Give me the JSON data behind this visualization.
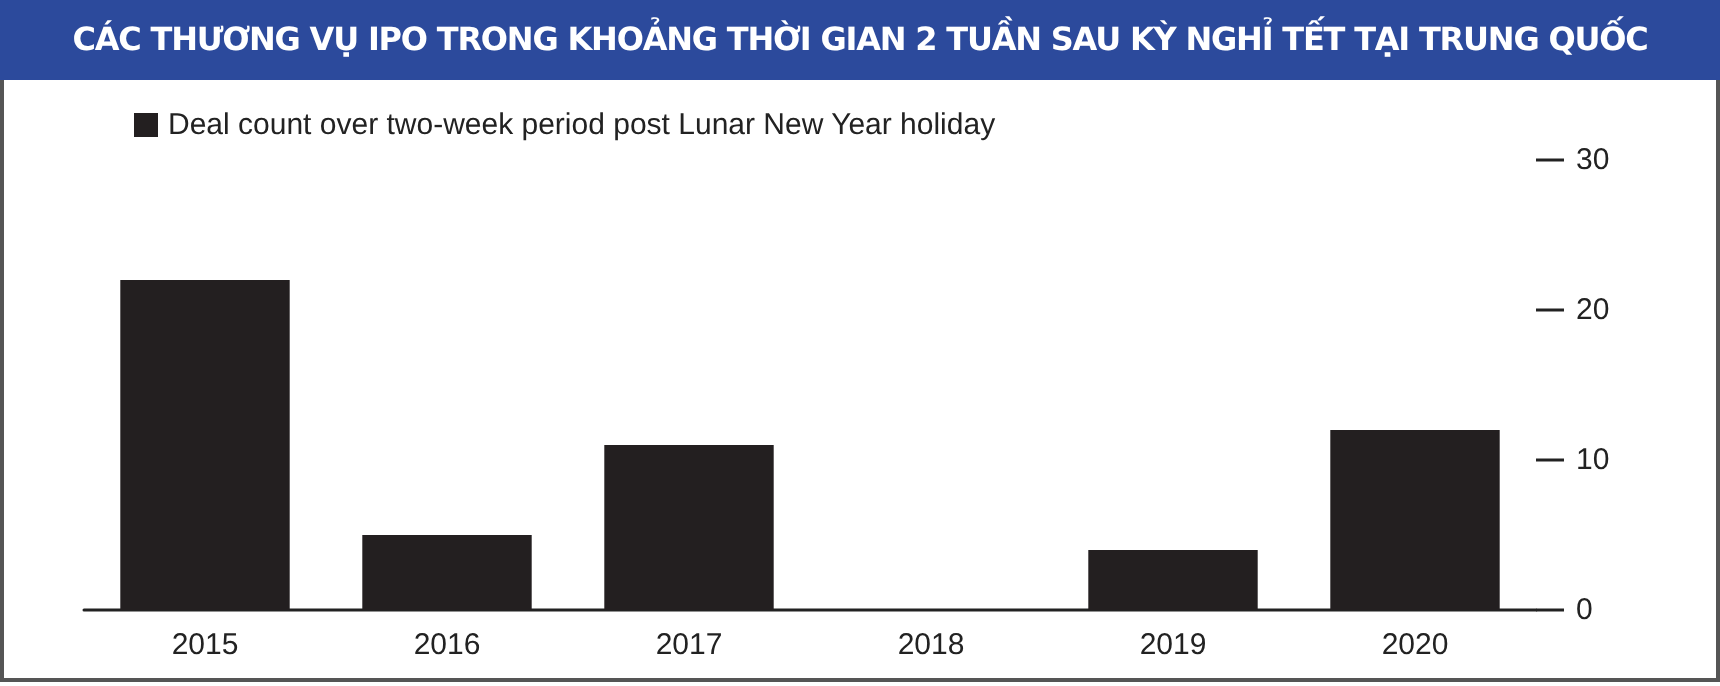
{
  "chart_data": {
    "type": "bar",
    "title": "CÁC THƯƠNG VỤ IPO TRONG KHOẢNG THỜI GIAN 2 TUẦN SAU KỲ NGHỈ TẾT TẠI TRUNG QUỐC",
    "categories": [
      "2015",
      "2016",
      "2017",
      "2018",
      "2019",
      "2020"
    ],
    "series": [
      {
        "name": "Deal count over two-week period post Lunar New Year holiday",
        "color": "#231f20",
        "values": [
          22,
          5,
          11,
          0,
          4,
          12
        ]
      }
    ],
    "ylim": [
      0,
      30
    ],
    "yticks": [
      0,
      10,
      20,
      30
    ],
    "grid": false,
    "legend": "top left"
  }
}
